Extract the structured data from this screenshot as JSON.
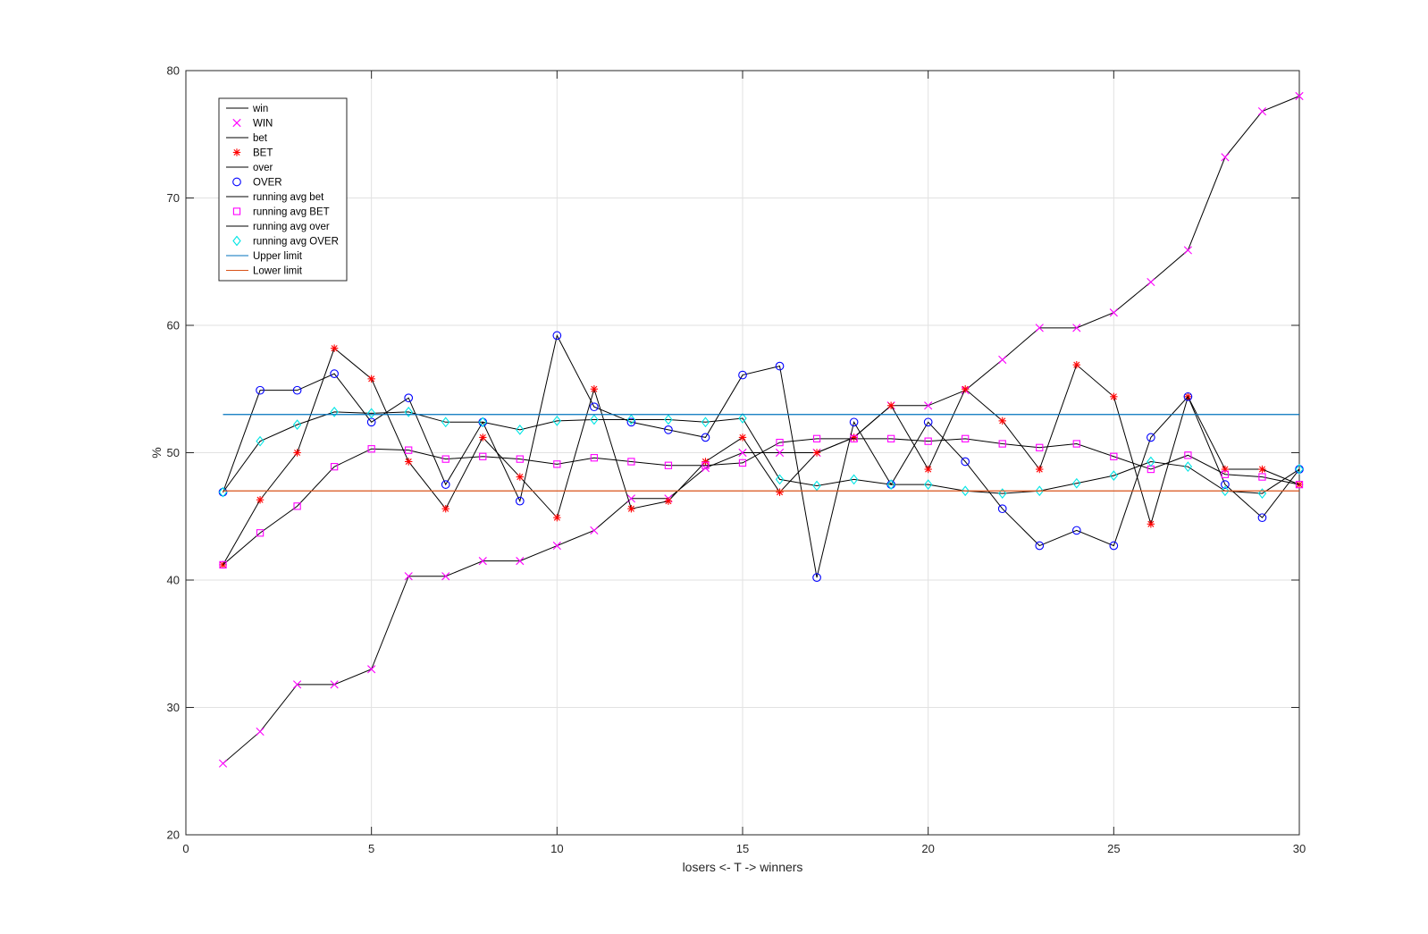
{
  "chart_data": {
    "type": "line",
    "title": "",
    "xlabel": "losers <- T -> winners",
    "ylabel": "%",
    "xlim": [
      0,
      30
    ],
    "ylim": [
      20,
      80
    ],
    "xticks": [
      "0",
      "5",
      "10",
      "15",
      "20",
      "25",
      "30"
    ],
    "yticks": [
      "20",
      "30",
      "40",
      "50",
      "60",
      "70",
      "80"
    ],
    "grid": true,
    "legend_position": "top-left",
    "x": [
      1,
      2,
      3,
      4,
      5,
      6,
      7,
      8,
      9,
      10,
      11,
      12,
      13,
      14,
      15,
      16,
      17,
      18,
      19,
      20,
      21,
      22,
      23,
      24,
      25,
      26,
      27,
      28,
      29,
      30
    ],
    "series": [
      {
        "name": "win",
        "color": "#000000",
        "style": "line",
        "values": [
          25.6,
          28.1,
          31.8,
          31.8,
          33.0,
          40.3,
          40.3,
          41.5,
          41.5,
          42.7,
          43.9,
          46.4,
          46.4,
          48.8,
          50.0,
          50.0,
          50.0,
          51.2,
          53.7,
          53.7,
          54.9,
          57.3,
          59.8,
          59.8,
          61.0,
          63.4,
          65.9,
          73.2,
          76.8,
          78.0
        ]
      },
      {
        "name": "WIN",
        "color": "#ff00ff",
        "style": "marker",
        "marker": "x",
        "values": [
          25.6,
          28.1,
          31.8,
          31.8,
          33.0,
          40.3,
          40.3,
          41.5,
          41.5,
          42.7,
          43.9,
          46.4,
          46.4,
          48.8,
          50.0,
          50.0,
          50.0,
          51.2,
          53.7,
          53.7,
          54.9,
          57.3,
          59.8,
          59.8,
          61.0,
          63.4,
          65.9,
          73.2,
          76.8,
          78.0
        ]
      },
      {
        "name": "bet",
        "color": "#000000",
        "style": "line",
        "values": [
          41.2,
          46.3,
          50.0,
          58.2,
          55.8,
          49.3,
          45.6,
          51.2,
          48.1,
          44.9,
          55.0,
          45.6,
          46.2,
          49.3,
          51.2,
          46.9,
          50.0,
          51.2,
          53.7,
          48.7,
          55.0,
          52.5,
          48.7,
          56.9,
          54.4,
          44.4,
          54.4,
          48.7,
          48.7,
          47.5
        ]
      },
      {
        "name": "BET",
        "color": "#ff0000",
        "style": "marker",
        "marker": "star",
        "values": [
          41.2,
          46.3,
          50.0,
          58.2,
          55.8,
          49.3,
          45.6,
          51.2,
          48.1,
          44.9,
          55.0,
          45.6,
          46.2,
          49.3,
          51.2,
          46.9,
          50.0,
          51.2,
          53.7,
          48.7,
          55.0,
          52.5,
          48.7,
          56.9,
          54.4,
          44.4,
          54.4,
          48.7,
          48.7,
          47.5
        ]
      },
      {
        "name": "over",
        "color": "#000000",
        "style": "line",
        "values": [
          46.9,
          54.9,
          54.9,
          56.2,
          52.4,
          54.3,
          47.5,
          52.4,
          46.2,
          59.2,
          53.6,
          52.4,
          51.8,
          51.2,
          56.1,
          56.8,
          40.2,
          52.4,
          47.5,
          52.4,
          49.3,
          45.6,
          42.7,
          43.9,
          42.7,
          51.2,
          54.4,
          47.5,
          44.9,
          48.7
        ]
      },
      {
        "name": "OVER",
        "color": "#0000ff",
        "style": "marker",
        "marker": "circle",
        "values": [
          46.9,
          54.9,
          54.9,
          56.2,
          52.4,
          54.3,
          47.5,
          52.4,
          46.2,
          59.2,
          53.6,
          52.4,
          51.8,
          51.2,
          56.1,
          56.8,
          40.2,
          52.4,
          47.5,
          52.4,
          49.3,
          45.6,
          42.7,
          43.9,
          42.7,
          51.2,
          54.4,
          47.5,
          44.9,
          48.7
        ]
      },
      {
        "name": "running avg bet",
        "color": "#000000",
        "style": "line",
        "values": [
          41.2,
          43.7,
          45.8,
          48.9,
          50.3,
          50.2,
          49.5,
          49.7,
          49.5,
          49.1,
          49.6,
          49.3,
          49.0,
          49.0,
          49.2,
          50.8,
          51.1,
          51.1,
          51.1,
          50.9,
          51.1,
          50.7,
          50.4,
          50.7,
          49.7,
          48.7,
          49.8,
          48.3,
          48.1,
          47.5
        ]
      },
      {
        "name": "running avg BET",
        "color": "#ff00ff",
        "style": "marker",
        "marker": "square",
        "values": [
          41.2,
          43.7,
          45.8,
          48.9,
          50.3,
          50.2,
          49.5,
          49.7,
          49.5,
          49.1,
          49.6,
          49.3,
          49.0,
          49.0,
          49.2,
          50.8,
          51.1,
          51.1,
          51.1,
          50.9,
          51.1,
          50.7,
          50.4,
          50.7,
          49.7,
          48.7,
          49.8,
          48.3,
          48.1,
          47.5
        ]
      },
      {
        "name": "running avg over",
        "color": "#000000",
        "style": "line",
        "values": [
          46.9,
          50.9,
          52.2,
          53.2,
          53.1,
          53.2,
          52.4,
          52.4,
          51.8,
          52.5,
          52.6,
          52.6,
          52.6,
          52.4,
          52.7,
          47.9,
          47.4,
          47.9,
          47.5,
          47.5,
          47.0,
          46.8,
          47.0,
          47.6,
          48.2,
          49.3,
          48.9,
          47.0,
          46.8,
          48.7
        ]
      },
      {
        "name": "running avg OVER",
        "color": "#00e5e5",
        "style": "marker",
        "marker": "diamond",
        "values": [
          46.9,
          50.9,
          52.2,
          53.2,
          53.1,
          53.2,
          52.4,
          52.4,
          51.8,
          52.5,
          52.6,
          52.6,
          52.6,
          52.4,
          52.7,
          47.9,
          47.4,
          47.9,
          47.5,
          47.5,
          47.0,
          46.8,
          47.0,
          47.6,
          48.2,
          49.3,
          48.9,
          47.0,
          46.8,
          48.7
        ]
      },
      {
        "name": "Upper limit",
        "color": "#0072bd",
        "style": "hline",
        "y": 53
      },
      {
        "name": "Lower limit",
        "color": "#d95319",
        "style": "hline",
        "y": 47
      }
    ]
  }
}
